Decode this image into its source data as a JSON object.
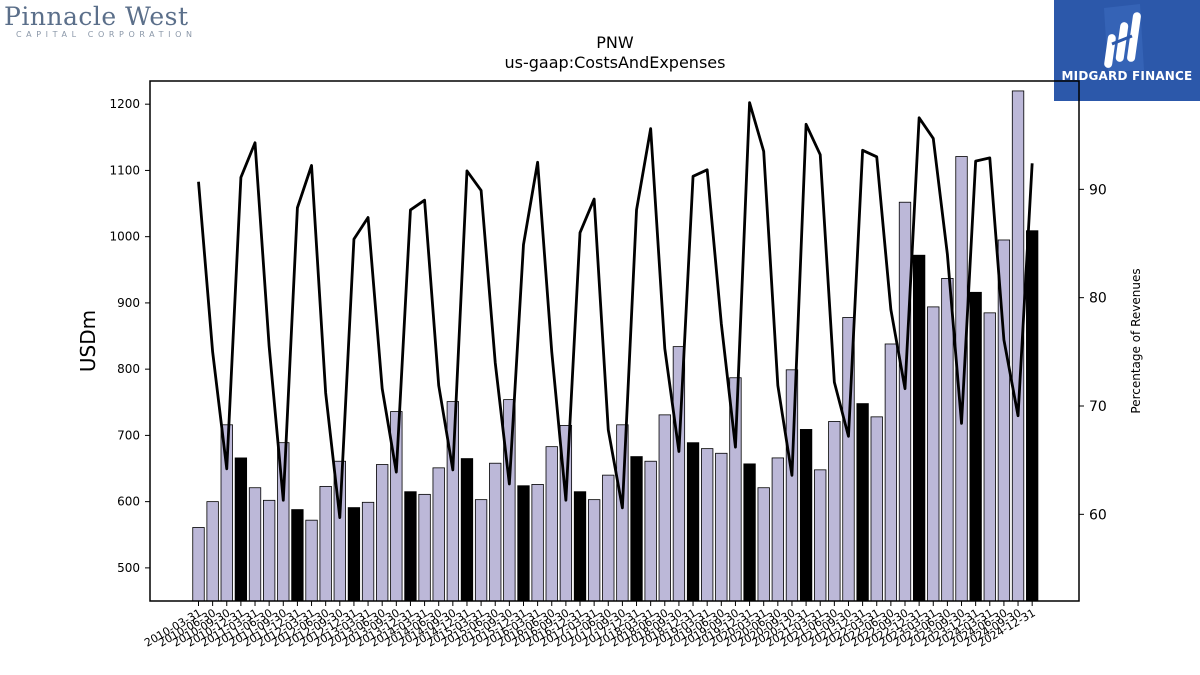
{
  "logos": {
    "left_main": "Pinnacle West",
    "left_sub": "CAPITAL CORPORATION",
    "right_brand": "MIDGARD FINANCE"
  },
  "chart_data": {
    "type": "bar",
    "title": "PNW",
    "subtitle": "us-gaap:CostsAndExpenses",
    "ylabel": "USDm",
    "y2label": "Percentage of Revenues",
    "ylim": [
      450,
      1235
    ],
    "y2lim": [
      52,
      100
    ],
    "yticks": [
      500,
      600,
      700,
      800,
      900,
      1000,
      1100,
      1200
    ],
    "y2ticks": [
      60,
      70,
      80,
      90
    ],
    "grid": false,
    "colors": {
      "bar": "#bcb8d8",
      "bar_q4": "#000000",
      "line": "#000000",
      "edge": "#000000"
    },
    "categories": [
      "2010-03-31",
      "2010-06-30",
      "2010-09-30",
      "2010-12-31",
      "2011-03-31",
      "2011-06-30",
      "2011-09-30",
      "2011-12-31",
      "2012-03-31",
      "2012-06-30",
      "2012-09-30",
      "2012-12-31",
      "2013-03-31",
      "2013-06-30",
      "2013-09-30",
      "2013-12-31",
      "2014-03-31",
      "2014-06-30",
      "2014-09-30",
      "2014-12-31",
      "2015-03-31",
      "2015-06-30",
      "2015-09-30",
      "2015-12-31",
      "2016-03-31",
      "2016-06-30",
      "2016-09-30",
      "2016-12-31",
      "2017-03-31",
      "2017-06-30",
      "2017-09-30",
      "2017-12-31",
      "2018-03-31",
      "2018-06-30",
      "2018-09-30",
      "2018-12-31",
      "2019-03-31",
      "2019-06-30",
      "2019-09-30",
      "2019-12-31",
      "2020-03-31",
      "2020-06-30",
      "2020-09-30",
      "2020-12-31",
      "2021-03-31",
      "2021-06-30",
      "2021-09-30",
      "2021-12-31",
      "2022-03-31",
      "2022-06-30",
      "2022-09-30",
      "2022-12-31",
      "2023-03-31",
      "2023-06-30",
      "2023-09-30",
      "2023-12-31",
      "2024-03-31",
      "2024-06-30",
      "2024-09-30",
      "2024-12-31"
    ],
    "series": [
      {
        "type": "bar",
        "values": [
          561,
          600,
          716,
          666,
          621,
          602,
          689,
          588,
          572,
          623,
          661,
          591,
          599,
          656,
          736,
          615,
          611,
          651,
          751,
          665,
          603,
          658,
          754,
          624,
          626,
          683,
          715,
          615,
          603,
          640,
          716,
          668,
          661,
          731,
          834,
          689,
          680,
          673,
          787,
          657,
          621,
          666,
          799,
          709,
          648,
          721,
          878,
          748,
          728,
          838,
          1052,
          972,
          894,
          937,
          1121,
          916,
          885,
          995,
          1220,
          1009
        ],
        "highlight_every": 4,
        "highlight_offset": 3
      },
      {
        "type": "line",
        "axis": "right",
        "values": [
          90.7,
          75.0,
          64.2,
          91.1,
          94.3,
          75.5,
          61.3,
          88.3,
          92.2,
          71.2,
          59.7,
          85.4,
          87.4,
          71.6,
          63.9,
          88.1,
          89.0,
          71.9,
          64.1,
          91.7,
          89.9,
          74.0,
          62.8,
          84.9,
          92.5,
          75.0,
          61.3,
          86.0,
          89.1,
          67.8,
          60.6,
          88.1,
          95.6,
          75.3,
          65.8,
          91.2,
          91.8,
          77.6,
          66.2,
          98.0,
          93.5,
          71.9,
          63.6,
          96.0,
          93.2,
          72.2,
          67.2,
          93.6,
          93.0,
          78.9,
          71.6,
          96.6,
          94.7,
          84.0,
          68.4,
          92.6,
          92.9,
          76.1,
          69.1,
          92.4
        ]
      }
    ]
  }
}
